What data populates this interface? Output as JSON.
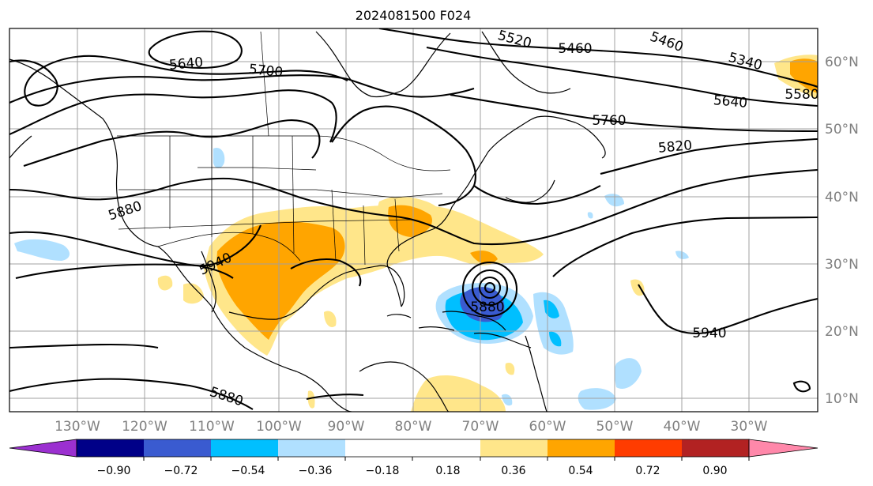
{
  "title": "2024081500 F024",
  "lon_labels": [
    "130°W",
    "120°W",
    "110°W",
    "100°W",
    "90°W",
    "80°W",
    "70°W",
    "60°W",
    "50°W",
    "40°W",
    "30°W"
  ],
  "lat_labels": [
    "60°N",
    "50°N",
    "40°N",
    "30°N",
    "20°N",
    "10°N"
  ],
  "contour_labels": [
    "5640",
    "5700",
    "5520",
    "5460",
    "5460",
    "5340",
    "5640",
    "5580",
    "5760",
    "5820",
    "5880",
    "5940",
    "5880",
    "5940",
    "5880"
  ],
  "colorbar": {
    "colors": [
      "#9b30d0",
      "#000088",
      "#3a5bd0",
      "#00bfff",
      "#b0e0ff",
      "#ffffff",
      "#ffe68a",
      "#ffa500",
      "#ff3c00",
      "#b22222",
      "#ff88aa"
    ],
    "tick_labels": [
      "−0.90",
      "−0.72",
      "−0.54",
      "−0.36",
      "−0.18",
      "0.18",
      "0.36",
      "0.54",
      "0.72",
      "0.90"
    ]
  },
  "colors": {
    "ocean_bg": "#ffffff",
    "grid": "#a0a0a0",
    "pos1": "#ffe68a",
    "pos2": "#ffa500",
    "neg1": "#b0e0ff",
    "neg2": "#00bfff",
    "neg3": "#3a5bd0"
  }
}
